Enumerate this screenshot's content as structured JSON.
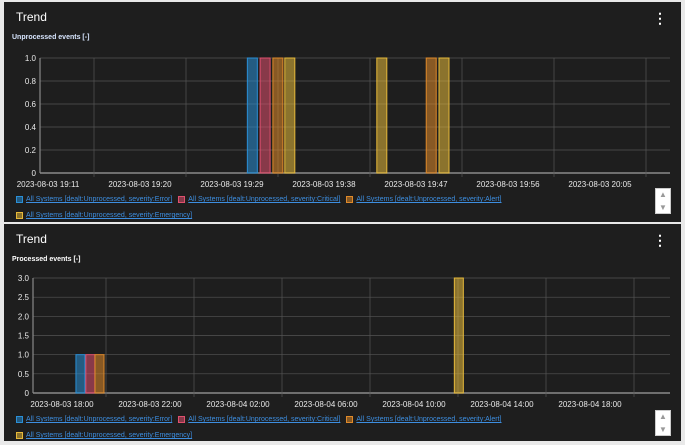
{
  "colors": {
    "error": "#2a8fd6",
    "critical": "#e0506e",
    "alert": "#e08a2a",
    "emergency": "#e6b93a",
    "grid": "#555555",
    "axis": "#8a8a8a",
    "text": "#e8e8e8"
  },
  "panels": [
    {
      "title": "Trend",
      "menu_icon": "kebab-icon",
      "subtitle": "Unprocessed events [-]",
      "legend": [
        "All Systems [dealt:Unprocessed, severity:Error]",
        "All Systems [dealt:Unprocessed, severity:Critical]",
        "All Systems [dealt:Unprocessed, severity:Alert]",
        "All Systems [dealt:Unprocessed, severity:Emergency]"
      ]
    },
    {
      "title": "Trend",
      "menu_icon": "kebab-icon",
      "subtitle": "Processed events [-]",
      "legend": [
        "All Systems [dealt:Unprocessed, severity:Error]",
        "All Systems [dealt:Unprocessed, severity:Critical]",
        "All Systems [dealt:Unprocessed, severity:Alert]",
        "All Systems [dealt:Unprocessed, severity:Emergency]"
      ]
    }
  ],
  "chart_data": [
    {
      "type": "bar",
      "title": "Unprocessed events [-]",
      "ylim": [
        0,
        1.0
      ],
      "yticks": [
        "0",
        "0.2",
        "0.4",
        "0.6",
        "0.8",
        "1.0"
      ],
      "xticks": [
        "2023-08-03 19:11",
        "2023-08-03 19:20",
        "2023-08-03 19:29",
        "2023-08-03 19:38",
        "2023-08-03 19:47",
        "2023-08-03 19:56",
        "2023-08-03 20:05"
      ],
      "grid": true,
      "legend": "bottom",
      "bars": [
        {
          "series": "error",
          "time": "2023-08-03 19:30:30",
          "value": 1
        },
        {
          "series": "critical",
          "time": "2023-08-03 19:31:45",
          "value": 1
        },
        {
          "series": "alert",
          "time": "2023-08-03 19:33:00",
          "value": 1
        },
        {
          "series": "emergency",
          "time": "2023-08-03 19:34:10",
          "value": 1
        },
        {
          "series": "emergency",
          "time": "2023-08-03 19:43:10",
          "value": 1
        },
        {
          "series": "alert",
          "time": "2023-08-03 19:48:00",
          "value": 1
        },
        {
          "series": "emergency",
          "time": "2023-08-03 19:49:15",
          "value": 1
        }
      ]
    },
    {
      "type": "bar",
      "title": "Processed events [-]",
      "ylim": [
        0,
        3.0
      ],
      "yticks": [
        "0",
        "0.5",
        "1.0",
        "1.5",
        "2.0",
        "2.5",
        "3.0"
      ],
      "xticks": [
        "2023-08-03 18:00",
        "2023-08-03 22:00",
        "2023-08-04 02:00",
        "2023-08-04 06:00",
        "2023-08-04 10:00",
        "2023-08-04 14:00",
        "2023-08-04 18:00"
      ],
      "grid": true,
      "legend": "bottom",
      "bars": [
        {
          "series": "error",
          "time": "2023-08-03 18:38",
          "value": 1
        },
        {
          "series": "critical",
          "time": "2023-08-03 19:05",
          "value": 1
        },
        {
          "series": "alert",
          "time": "2023-08-03 19:30",
          "value": 1
        },
        {
          "series": "emergency",
          "time": "2023-08-04 11:50",
          "value": 3
        }
      ]
    }
  ]
}
